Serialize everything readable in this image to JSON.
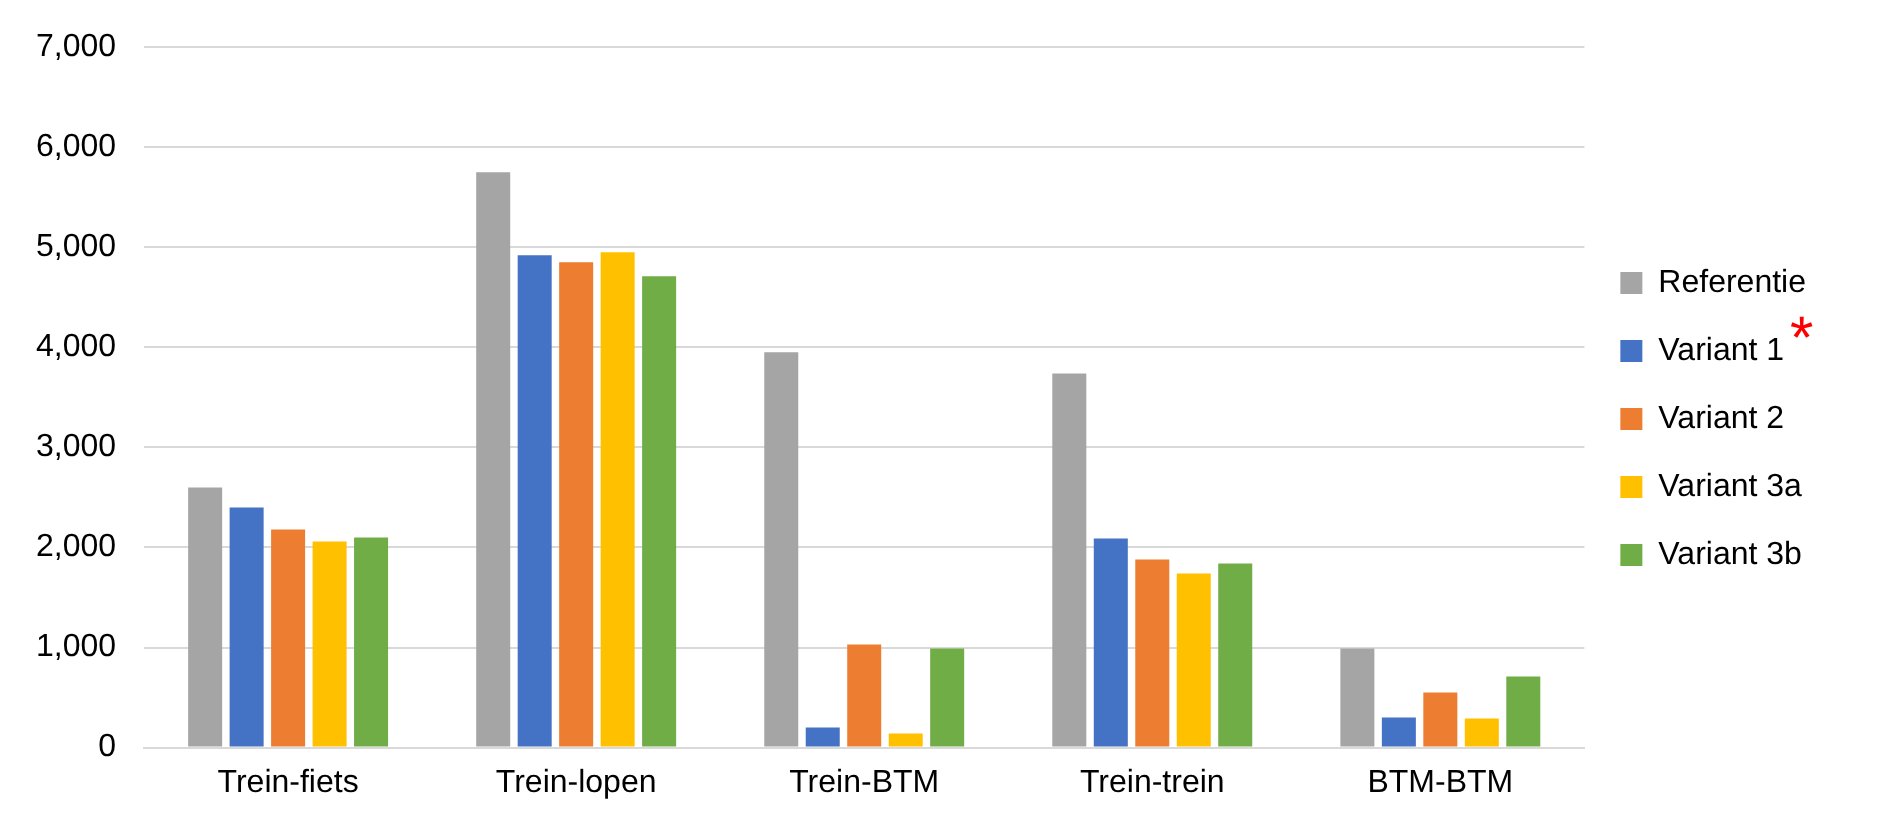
{
  "chart_data": {
    "type": "bar",
    "categories": [
      "Trein-fiets",
      "Trein-lopen",
      "Trein-BTM",
      "Trein-trein",
      "BTM-BTM"
    ],
    "series": [
      {
        "name": "Referentie",
        "color": "#a5a5a5",
        "values": [
          2600,
          5750,
          3950,
          3740,
          990
        ]
      },
      {
        "name": "Variant 1",
        "color": "#4472c4",
        "values": [
          2400,
          4920,
          200,
          2090,
          300
        ]
      },
      {
        "name": "Variant 2",
        "color": "#ed7d31",
        "values": [
          2180,
          4850,
          1030,
          1880,
          550
        ]
      },
      {
        "name": "Variant 3a",
        "color": "#ffc000",
        "values": [
          2060,
          4950,
          140,
          1740,
          290
        ]
      },
      {
        "name": "Variant 3b",
        "color": "#70ad47",
        "values": [
          2100,
          4710,
          990,
          1840,
          710
        ]
      }
    ],
    "ylim": [
      0,
      7000
    ],
    "yticks": [
      0,
      {
        "value": 1000,
        "label": "1,000"
      },
      {
        "value": 2000,
        "label": "2,000"
      },
      {
        "value": 3000,
        "label": "3,000"
      },
      {
        "value": 4000,
        "label": "4,000"
      },
      {
        "value": 5000,
        "label": "5,000"
      },
      {
        "value": 6000,
        "label": "6,000"
      },
      {
        "value": 7000,
        "label": "7,000"
      }
    ],
    "grid": "y",
    "legend": "right",
    "annotations": [
      "*"
    ]
  }
}
